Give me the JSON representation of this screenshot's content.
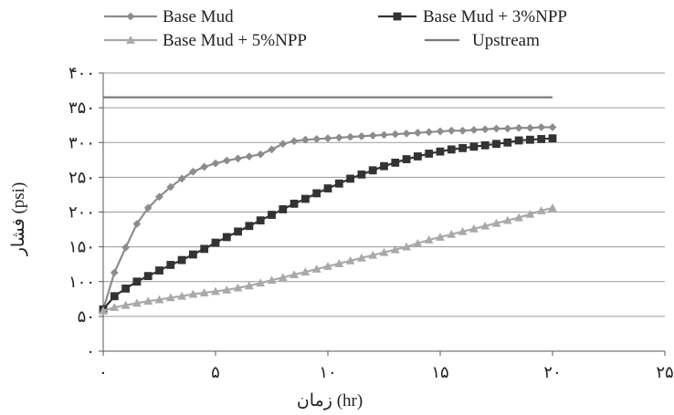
{
  "chart_data": {
    "type": "line",
    "xlabel": "زمان (hr)",
    "ylabel": "فشار (psi)",
    "xlim": [
      0,
      25
    ],
    "ylim": [
      0,
      400
    ],
    "x_ticks": [
      0,
      5,
      10,
      15,
      20,
      25
    ],
    "x_tick_labels": [
      "۰",
      "۵",
      "۱۰",
      "۱۵",
      "۲۰",
      "۲۵"
    ],
    "y_ticks": [
      0,
      50,
      100,
      150,
      200,
      250,
      300,
      350,
      400
    ],
    "y_tick_labels": [
      "۰",
      "۵۰",
      "۱۰۰",
      "۱۵۰",
      "۲۰۰",
      "۲۵۰",
      "۳۰۰",
      "۳۵۰",
      "۴۰۰"
    ],
    "grid": "horizontal",
    "legend_position": "top",
    "series": [
      {
        "name": "Base Mud",
        "color": "#8c8c8c",
        "marker": "diamond",
        "x": [
          0,
          0.5,
          1,
          1.5,
          2,
          2.5,
          3,
          3.5,
          4,
          4.5,
          5,
          5.5,
          6,
          6.5,
          7,
          7.5,
          8,
          8.5,
          9,
          9.5,
          10,
          10.5,
          11,
          11.5,
          12,
          12.5,
          13,
          13.5,
          14,
          14.5,
          15,
          15.5,
          16,
          16.5,
          17,
          17.5,
          18,
          18.5,
          19,
          19.5,
          20
        ],
        "y": [
          60,
          113,
          149,
          183,
          206,
          222,
          236,
          248,
          258,
          265,
          270,
          274,
          277,
          280,
          283,
          290,
          298,
          302,
          304,
          305,
          306,
          307,
          308,
          309,
          310,
          311,
          312,
          313,
          314,
          315,
          316,
          317,
          317,
          318,
          319,
          320,
          320,
          321,
          321,
          322,
          322
        ]
      },
      {
        "name": "Base Mud + 3%NPP",
        "color": "#333333",
        "marker": "square",
        "x": [
          0,
          0.5,
          1,
          1.5,
          2,
          2.5,
          3,
          3.5,
          4,
          4.5,
          5,
          5.5,
          6,
          6.5,
          7,
          7.5,
          8,
          8.5,
          9,
          9.5,
          10,
          10.5,
          11,
          11.5,
          12,
          12.5,
          13,
          13.5,
          14,
          14.5,
          15,
          15.5,
          16,
          16.5,
          17,
          17.5,
          18,
          18.5,
          19,
          19.5,
          20
        ],
        "y": [
          60,
          79,
          90,
          100,
          108,
          116,
          124,
          131,
          139,
          147,
          156,
          164,
          172,
          180,
          188,
          196,
          204,
          212,
          219,
          227,
          234,
          241,
          248,
          254,
          260,
          266,
          271,
          276,
          280,
          284,
          287,
          290,
          292,
          294,
          296,
          298,
          300,
          303,
          304,
          305,
          306
        ]
      },
      {
        "name": "Base Mud + 5%NPP",
        "color": "#a9a9a9",
        "marker": "triangle",
        "x": [
          0,
          0.5,
          1,
          1.5,
          2,
          2.5,
          3,
          3.5,
          4,
          4.5,
          5,
          5.5,
          6,
          6.5,
          7,
          7.5,
          8,
          8.5,
          9,
          9.5,
          10,
          10.5,
          11,
          11.5,
          12,
          12.5,
          13,
          13.5,
          14,
          14.5,
          15,
          15.5,
          16,
          16.5,
          17,
          17.5,
          18,
          18.5,
          19,
          19.5,
          20
        ],
        "y": [
          58,
          63,
          66,
          69,
          72,
          74,
          77,
          79,
          82,
          84,
          86,
          88,
          91,
          94,
          98,
          102,
          106,
          110,
          114,
          118,
          122,
          126,
          130,
          134,
          138,
          142,
          146,
          150,
          155,
          160,
          164,
          168,
          172,
          176,
          180,
          184,
          188,
          192,
          197,
          202,
          206
        ]
      },
      {
        "name": "Upstream",
        "color": "#777777",
        "marker": "none",
        "x": [
          0,
          20
        ],
        "y": [
          365,
          365
        ]
      }
    ]
  }
}
